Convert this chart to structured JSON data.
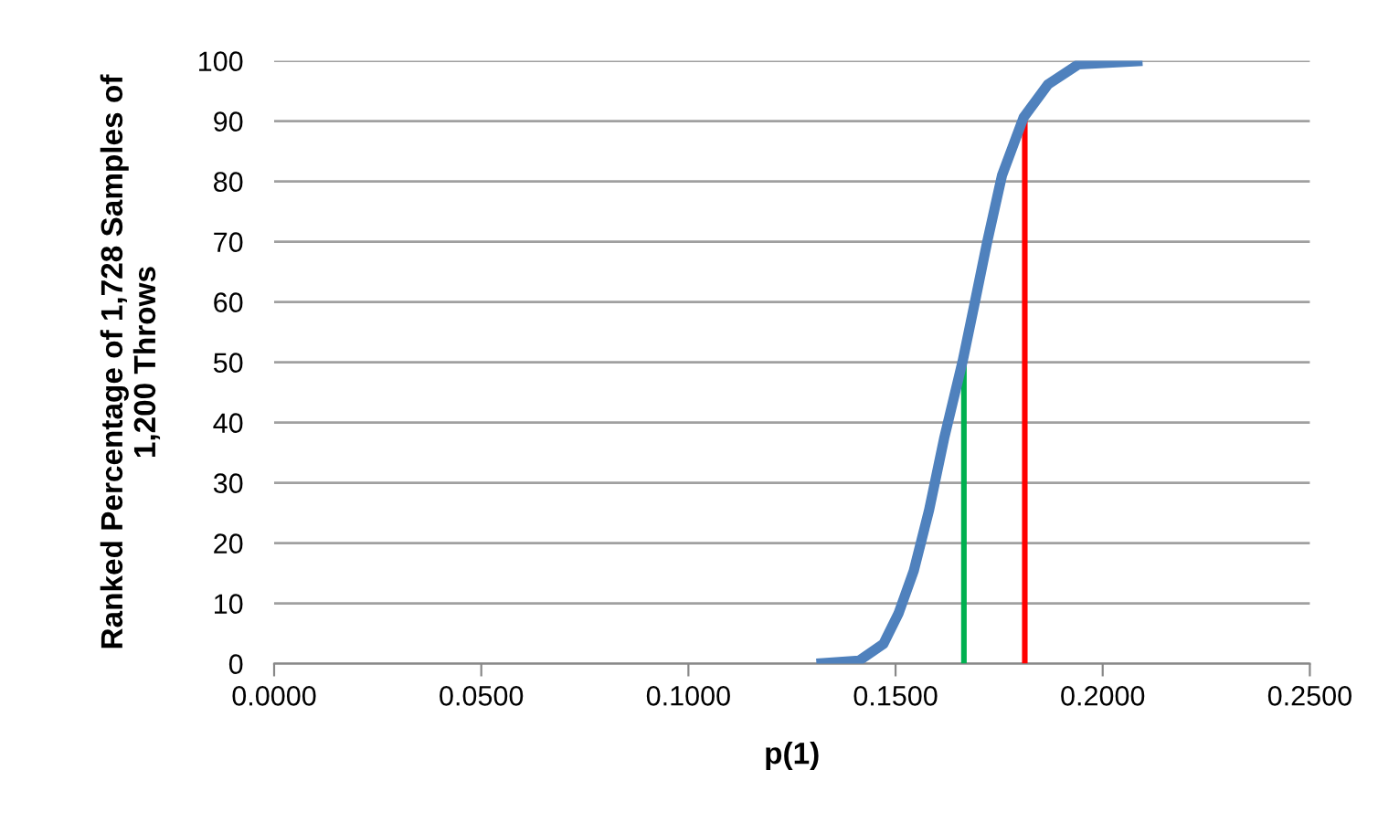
{
  "chart_data": {
    "type": "line",
    "xlabel": "p(1)",
    "ylabel": "Ranked Percentage of 1,728 Samples of\n1,200 Throws",
    "xlim": [
      0,
      0.25
    ],
    "xticks": [
      {
        "value": 0,
        "label": "0.0000"
      },
      {
        "value": 0.05,
        "label": "0.0500"
      },
      {
        "value": 0.1,
        "label": "0.1000"
      },
      {
        "value": 0.15,
        "label": "0.1500"
      },
      {
        "value": 0.2,
        "label": "0.2000"
      },
      {
        "value": 0.25,
        "label": "0.2500"
      }
    ],
    "ylim": [
      0,
      100
    ],
    "yticks": [
      0,
      10,
      20,
      30,
      40,
      50,
      60,
      70,
      80,
      90,
      100
    ],
    "grid": "y",
    "legend": false,
    "marker": "none",
    "line_style": "solid",
    "series": [
      {
        "color": "#4f81bd",
        "x": [
          0.1309,
          0.1412,
          0.1471,
          0.1507,
          0.1544,
          0.1581,
          0.1618,
          0.1662,
          0.1691,
          0.1721,
          0.1757,
          0.1809,
          0.1868,
          0.1941,
          0.2096
        ],
        "values": [
          0,
          0.5,
          3.3,
          8.3,
          15.4,
          25.5,
          37.6,
          50.2,
          59.8,
          69.9,
          81,
          90.6,
          96.1,
          99.4,
          100
        ]
      },
      {
        "color": "#00b050",
        "x": [
          0.1665,
          0.1665
        ],
        "values": [
          0,
          50
        ]
      },
      {
        "color": "#ff0000",
        "x": [
          0.1812,
          0.1812
        ],
        "values": [
          0,
          90
        ]
      }
    ]
  }
}
